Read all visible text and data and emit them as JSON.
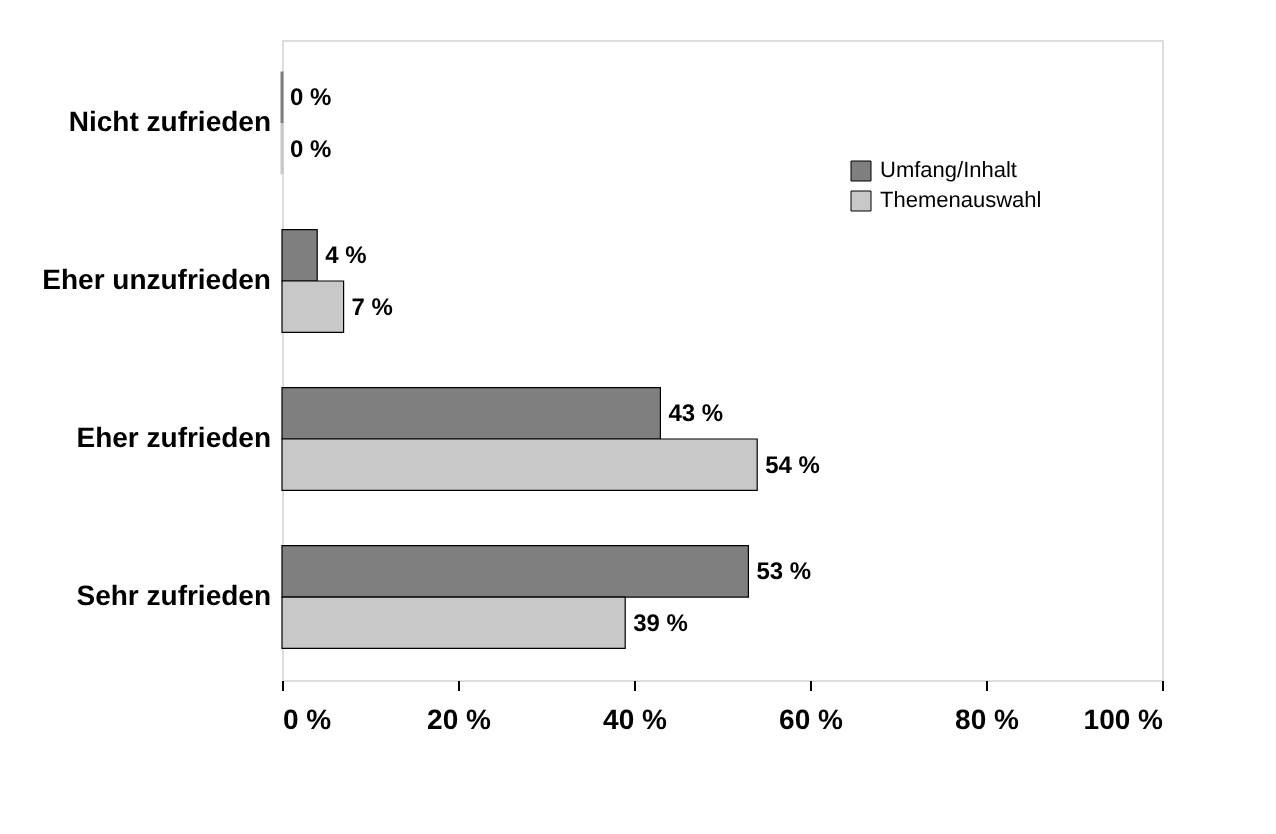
{
  "chart_data": {
    "type": "bar",
    "orientation": "horizontal",
    "categories": [
      "Nicht zufrieden",
      "Eher unzufrieden",
      "Eher zufrieden",
      "Sehr zufrieden"
    ],
    "series": [
      {
        "name": "Umfang/Inhalt",
        "color": "#7f7f7f",
        "values": [
          0,
          4,
          43,
          53
        ],
        "value_labels": [
          "0 %",
          "4 %",
          "43 %",
          "53 %"
        ]
      },
      {
        "name": "Themenauswahl",
        "color": "#c8c8c8",
        "values": [
          0,
          7,
          54,
          39
        ],
        "value_labels": [
          "0 %",
          "7 %",
          "54 %",
          "39 %"
        ]
      }
    ],
    "xlim": [
      0,
      100
    ],
    "xticks": [
      {
        "value": 0,
        "label": "0 %"
      },
      {
        "value": 20,
        "label": "20 %"
      },
      {
        "value": 40,
        "label": "40 %"
      },
      {
        "value": 60,
        "label": "60 %"
      },
      {
        "value": 80,
        "label": "80 %"
      },
      {
        "value": 100,
        "label": "100 %"
      }
    ],
    "legend": "top right",
    "grid": false
  }
}
